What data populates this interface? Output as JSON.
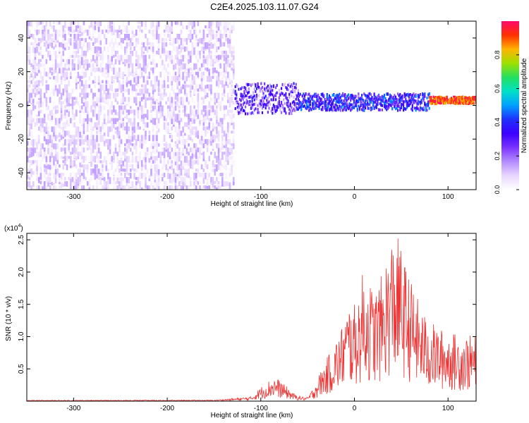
{
  "title": "C2E4.2025.103.11.07.G24",
  "colors": {
    "snr_line": "#ee3333",
    "colormap": [
      "#ffffff",
      "#e8d6ff",
      "#b48cff",
      "#7a33ff",
      "#3b00ff",
      "#1f30ff",
      "#00a0ff",
      "#00e0c8",
      "#22e060",
      "#9ee000",
      "#ffb400",
      "#ff3000",
      "#ff0a6a"
    ]
  },
  "chart_data": [
    {
      "type": "heatmap",
      "title": "C2E4.2025.103.11.07.G24",
      "xlabel": "Height of straight line (km)",
      "ylabel": "Frequency (Hz)",
      "xlim": [
        -350,
        130
      ],
      "ylim": [
        -50,
        50
      ],
      "x_ticks": [
        -300,
        -200,
        -100,
        0,
        100
      ],
      "y_ticks": [
        -40,
        -20,
        0,
        20,
        40
      ],
      "colorbar": {
        "label": "Normalized spectral amplitude",
        "range": [
          0,
          1
        ],
        "ticks": [
          0.0,
          0.2,
          0.4,
          0.6,
          0.8
        ]
      },
      "regions": [
        {
          "x_range": [
            -350,
            -128
          ],
          "description": "broadband noise spanning all frequencies",
          "amplitude_range": [
            0.0,
            0.15
          ]
        },
        {
          "x_range": [
            -128,
            -60
          ],
          "frequency_center": 4,
          "frequency_halfwidth": 9,
          "amplitude_range": [
            0.1,
            0.4
          ]
        },
        {
          "x_range": [
            -60,
            80
          ],
          "frequency_center": 2,
          "frequency_halfwidth": 5,
          "amplitude_range": [
            0.2,
            0.5
          ]
        },
        {
          "x_range": [
            80,
            130
          ],
          "frequency_center": 3,
          "frequency_halfwidth": 2,
          "amplitude_range": [
            0.8,
            1.0
          ]
        }
      ]
    },
    {
      "type": "line",
      "xlabel": "Height of straight line (km)",
      "ylabel": "SNR (10 * v/v)",
      "y_multiplier": "(x10^4)",
      "xlim": [
        -350,
        130
      ],
      "ylim": [
        0,
        26000
      ],
      "x_ticks": [
        -300,
        -200,
        -100,
        0,
        100
      ],
      "y_ticks": [
        5000,
        10000,
        15000,
        20000,
        25000
      ],
      "y_tick_labels": [
        "0.5",
        "1.0",
        "1.5",
        "2.0",
        "2.5"
      ],
      "series": [
        {
          "x": [
            -350,
            -250,
            -150,
            -110,
            -105,
            -100,
            -95,
            -90,
            -85,
            -80,
            -75,
            -70,
            -65,
            -60,
            -55,
            -50,
            -45,
            -40,
            -35,
            -30,
            -25,
            -20,
            -15,
            -10,
            -5,
            0,
            5,
            10,
            15,
            20,
            25,
            30,
            35,
            40,
            45,
            50,
            55,
            60,
            65,
            70,
            75,
            80,
            85,
            90,
            95,
            100,
            105,
            110,
            115,
            120,
            125,
            130
          ],
          "y": [
            150,
            160,
            180,
            700,
            1500,
            2200,
            2800,
            3400,
            3800,
            3300,
            2600,
            2000,
            1200,
            900,
            700,
            600,
            1800,
            3500,
            5000,
            6500,
            8000,
            9500,
            11000,
            13500,
            15500,
            15000,
            17000,
            21000,
            19000,
            17500,
            18000,
            20000,
            23000,
            25500,
            26000,
            24000,
            21000,
            19000,
            17000,
            15000,
            13500,
            12500,
            12000,
            11500,
            11000,
            10800,
            10600,
            10500,
            10400,
            10300,
            10200,
            10100
          ]
        }
      ]
    }
  ]
}
